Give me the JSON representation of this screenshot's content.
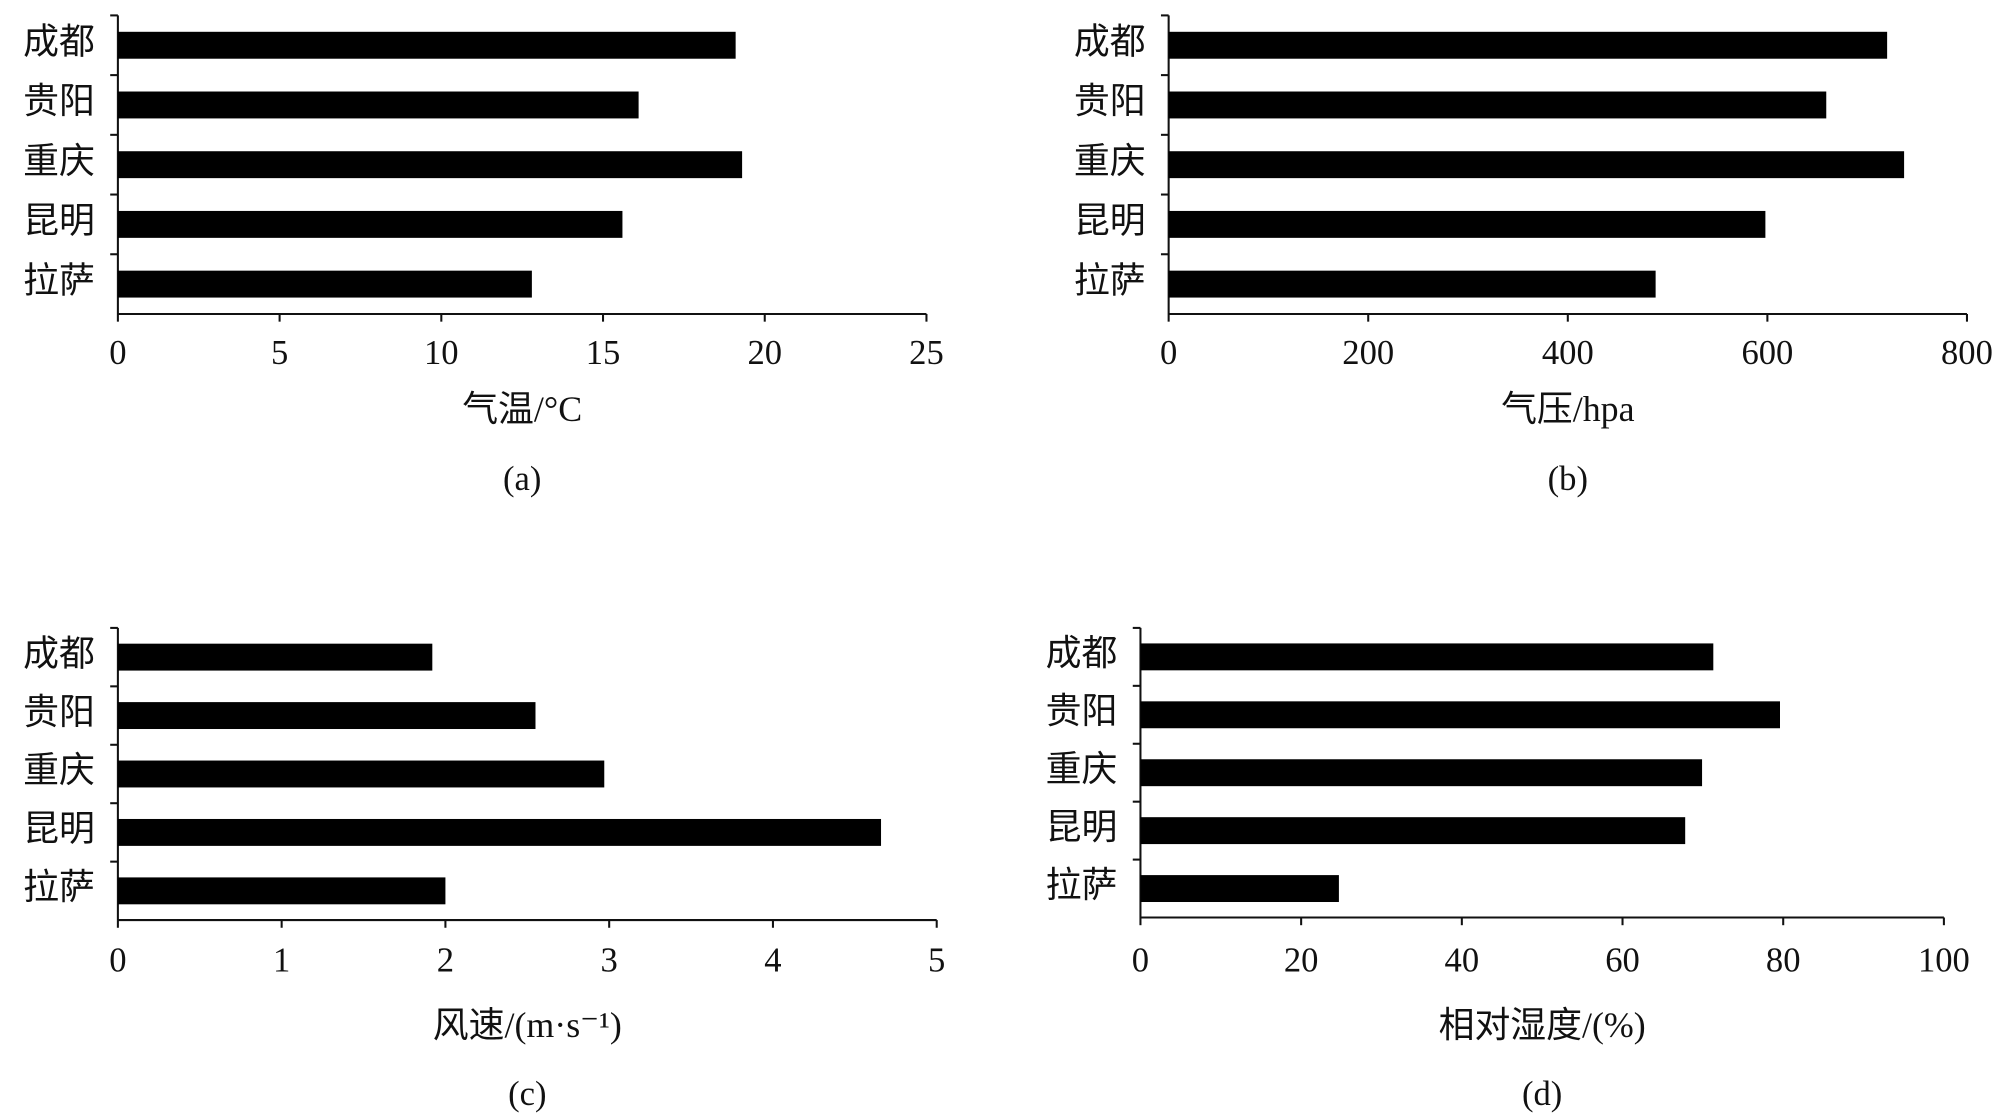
{
  "chart_data": [
    {
      "type": "bar",
      "orientation": "horizontal",
      "categories": [
        "成都",
        "贵阳",
        "重庆",
        "昆明",
        "拉萨"
      ],
      "values": [
        19.1,
        16.1,
        19.3,
        15.6,
        12.8
      ],
      "color": "#000000",
      "xlabel": "气温/°C",
      "caption": "(a)",
      "xlim": [
        0,
        25
      ],
      "xticks": [
        0,
        5,
        10,
        15,
        20,
        25
      ]
    },
    {
      "type": "bar",
      "orientation": "horizontal",
      "categories": [
        "成都",
        "贵阳",
        "重庆",
        "昆明",
        "拉萨"
      ],
      "values": [
        720,
        659,
        737,
        598,
        488
      ],
      "color": "#000000",
      "xlabel": "气压/hpa",
      "caption": "(b)",
      "xlim": [
        0,
        800
      ],
      "xticks": [
        0,
        200,
        400,
        600,
        800
      ]
    },
    {
      "type": "bar",
      "orientation": "horizontal",
      "categories": [
        "成都",
        "贵阳",
        "重庆",
        "昆明",
        "拉萨"
      ],
      "values": [
        1.92,
        2.55,
        2.97,
        4.66,
        2.0
      ],
      "color": "#000000",
      "xlabel": "风速/(m·s⁻¹)",
      "caption": "(c)",
      "xlim": [
        0,
        5
      ],
      "xticks": [
        0,
        1,
        2,
        3,
        4,
        5
      ]
    },
    {
      "type": "bar",
      "orientation": "horizontal",
      "categories": [
        "成都",
        "贵阳",
        "重庆",
        "昆明",
        "拉萨"
      ],
      "values": [
        71.3,
        79.6,
        69.9,
        67.8,
        24.7
      ],
      "color": "#000000",
      "xlabel": "相对湿度/(%)",
      "caption": "(d)",
      "xlim": [
        0,
        100
      ],
      "xticks": [
        0,
        20,
        40,
        60,
        80,
        100
      ]
    }
  ]
}
